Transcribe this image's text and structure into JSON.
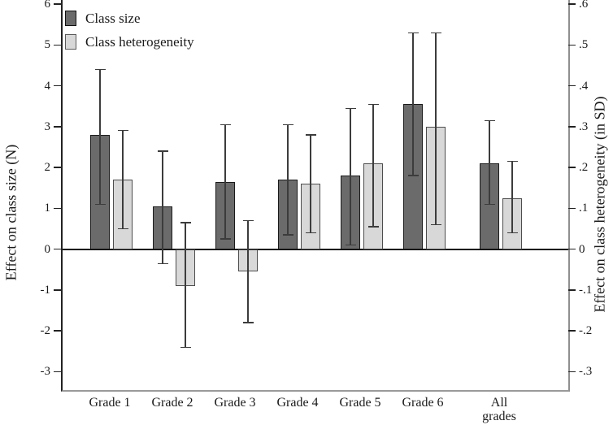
{
  "legend": {
    "items": [
      {
        "label": "Class size",
        "color": "#6b6b6b"
      },
      {
        "label": "Class heterogeneity",
        "color": "#d8d8d8"
      }
    ]
  },
  "axes": {
    "left_label": "Effect on class size (N)",
    "right_label": "Effect on class heterogeneity (in SD)",
    "left_ticks": [
      "6",
      "5",
      "4",
      "3",
      "2",
      "1",
      "0",
      "-1",
      "-2",
      "-3"
    ],
    "right_ticks": [
      ".6",
      ".5",
      ".4",
      ".3",
      ".2",
      ".1",
      "0",
      "-.1",
      "-.2",
      "-.3"
    ]
  },
  "chart_data": {
    "type": "bar",
    "title": "",
    "categories": [
      "Grade 1",
      "Grade 2",
      "Grade 3",
      "Grade 4",
      "Grade 5",
      "Grade 6",
      "All grades"
    ],
    "series": [
      {
        "name": "Class size",
        "axis": "left",
        "units": "N",
        "color": "#6b6b6b",
        "values": [
          2.8,
          1.05,
          1.65,
          1.7,
          1.8,
          3.55,
          2.1
        ],
        "ci_low": [
          1.1,
          -0.35,
          0.25,
          0.35,
          0.1,
          1.8,
          1.1
        ],
        "ci_high": [
          4.4,
          2.4,
          3.05,
          3.05,
          3.45,
          5.3,
          3.15
        ]
      },
      {
        "name": "Class heterogeneity",
        "axis": "right",
        "units": "SD",
        "color": "#d8d8d8",
        "values": [
          0.17,
          -0.09,
          -0.055,
          0.16,
          0.21,
          0.3,
          0.125
        ],
        "ci_low": [
          0.05,
          -0.24,
          -0.18,
          0.04,
          0.055,
          0.06,
          0.04
        ],
        "ci_high": [
          0.29,
          0.065,
          0.07,
          0.28,
          0.355,
          0.53,
          0.215
        ]
      }
    ],
    "left_axis": {
      "label": "Effect on class size (N)",
      "range": [
        -3,
        6
      ],
      "tick_step": 1
    },
    "right_axis": {
      "label": "Effect on class heterogeneity (in SD)",
      "range": [
        -0.3,
        0.6
      ],
      "tick_step": 0.1
    },
    "axis_mapping": "right axis = left axis / 10",
    "error_bars": true,
    "grid": false,
    "legend_position": "top-left"
  }
}
